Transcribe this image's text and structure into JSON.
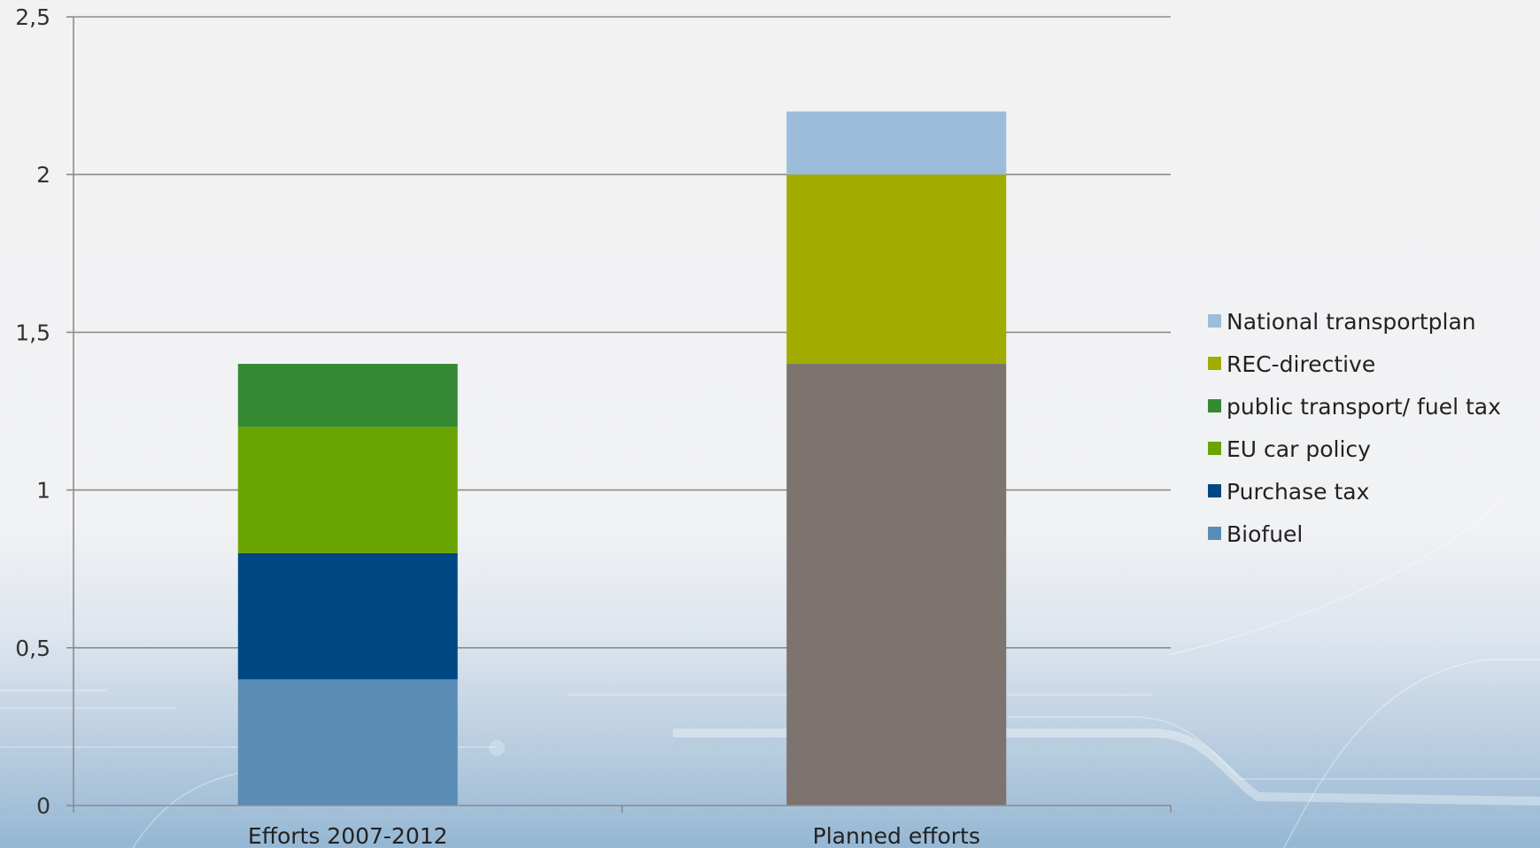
{
  "chart_data": {
    "type": "bar",
    "stacked": true,
    "categories": [
      "Efforts 2007-2012",
      "Planned efforts"
    ],
    "y_ticks": [
      "0",
      "0,5",
      "1",
      "1,5",
      "2",
      "2,5"
    ],
    "ylim": [
      0,
      2.5
    ],
    "grid": true,
    "legend_position": "right",
    "series": [
      {
        "name": "Biofuel",
        "color": "#5a8db5",
        "values": [
          0.4,
          0
        ]
      },
      {
        "name": "Purchase tax",
        "color": "#004884",
        "values": [
          0.4,
          0
        ]
      },
      {
        "name": "EU  car policy",
        "color": "#6aa400",
        "values": [
          0.4,
          0
        ]
      },
      {
        "name": "public transport/ fuel tax",
        "color": "#348a33",
        "values": [
          0.2,
          0
        ]
      },
      {
        "name": "",
        "color": "#7d736f",
        "values": [
          0,
          1.4
        ]
      },
      {
        "name": "REC-directive",
        "color": "#a2ab00",
        "values": [
          0,
          0.6
        ]
      },
      {
        "name": "National transportplan",
        "color": "#9bbdd9",
        "values": [
          0,
          0.2
        ]
      }
    ],
    "legend_order": [
      "National transportplan",
      "REC-directive",
      "public transport/ fuel tax",
      "EU  car policy",
      "Purchase tax",
      "Biofuel"
    ]
  }
}
